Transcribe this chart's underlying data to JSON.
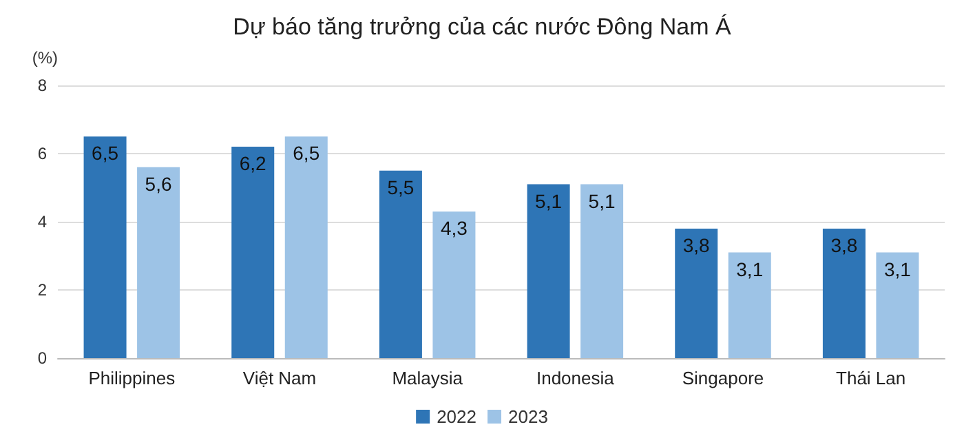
{
  "chart_data": {
    "type": "bar",
    "title": "Dự báo tăng trưởng của các nước Đông Nam Á",
    "ylabel": "(%)",
    "categories": [
      "Philippines",
      "Việt Nam",
      "Malaysia",
      "Indonesia",
      "Singapore",
      "Thái Lan"
    ],
    "series": [
      {
        "name": "2022",
        "color": "#2e75b6",
        "values": [
          6.5,
          6.2,
          5.5,
          5.1,
          3.8,
          3.8
        ],
        "value_labels": [
          "6,5",
          "6,2",
          "5,5",
          "5,1",
          "3,8",
          "3,8"
        ]
      },
      {
        "name": "2023",
        "color": "#9dc3e6",
        "values": [
          5.6,
          6.5,
          4.3,
          5.1,
          3.1,
          3.1
        ],
        "value_labels": [
          "5,6",
          "6,5",
          "4,3",
          "5,1",
          "3,1",
          "3,1"
        ]
      }
    ],
    "ylim": [
      0,
      8
    ],
    "yticks": [
      0,
      2,
      4,
      6,
      8
    ],
    "grid": "y",
    "legend": "bottom"
  }
}
